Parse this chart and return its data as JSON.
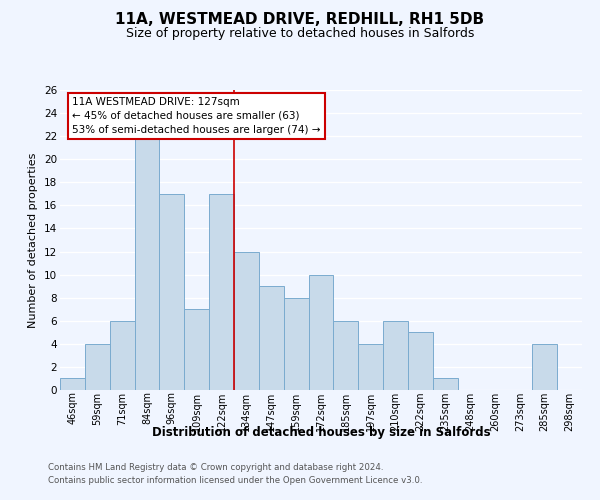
{
  "title": "11A, WESTMEAD DRIVE, REDHILL, RH1 5DB",
  "subtitle": "Size of property relative to detached houses in Salfords",
  "xlabel": "Distribution of detached houses by size in Salfords",
  "ylabel": "Number of detached properties",
  "bar_color": "#c8daea",
  "bar_edge_color": "#7aabcf",
  "categories": [
    "46sqm",
    "59sqm",
    "71sqm",
    "84sqm",
    "96sqm",
    "109sqm",
    "122sqm",
    "134sqm",
    "147sqm",
    "159sqm",
    "172sqm",
    "185sqm",
    "197sqm",
    "210sqm",
    "222sqm",
    "235sqm",
    "248sqm",
    "260sqm",
    "273sqm",
    "285sqm",
    "298sqm"
  ],
  "values": [
    1,
    4,
    6,
    22,
    17,
    7,
    17,
    12,
    9,
    8,
    10,
    6,
    4,
    6,
    5,
    1,
    0,
    0,
    0,
    4,
    0
  ],
  "ylim": [
    0,
    26
  ],
  "yticks": [
    0,
    2,
    4,
    6,
    8,
    10,
    12,
    14,
    16,
    18,
    20,
    22,
    24,
    26
  ],
  "property_line_x": 6.5,
  "property_line_color": "#cc0000",
  "annotation_title": "11A WESTMEAD DRIVE: 127sqm",
  "annotation_line1": "← 45% of detached houses are smaller (63)",
  "annotation_line2": "53% of semi-detached houses are larger (74) →",
  "footer_line1": "Contains HM Land Registry data © Crown copyright and database right 2024.",
  "footer_line2": "Contains public sector information licensed under the Open Government Licence v3.0.",
  "background_color": "#f0f5ff",
  "grid_color": "#ffffff",
  "title_fontsize": 11,
  "subtitle_fontsize": 9
}
